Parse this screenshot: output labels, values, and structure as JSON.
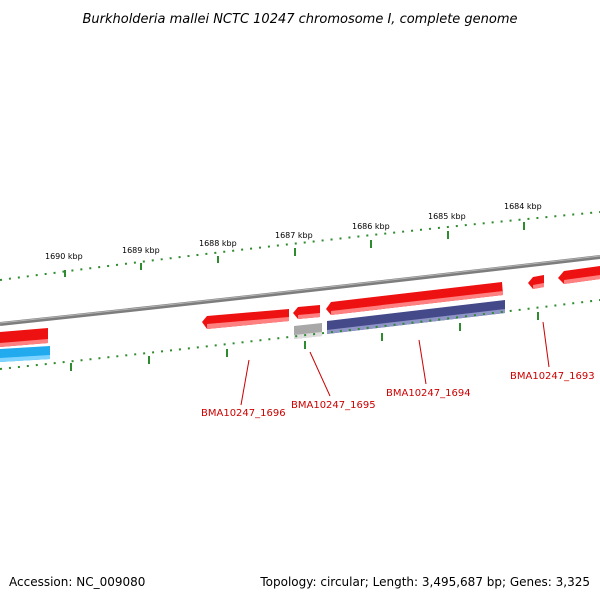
{
  "title": "Burkholderia mallei NCTC 10247 chromosome I, complete genome",
  "footer": {
    "accession": "Accession: NC_009080",
    "topology": "Topology: circular; Length: 3,495,687 bp; Genes: 3,325"
  },
  "scale_labels": [
    "1690 kbp",
    "1689 kbp",
    "1688 kbp",
    "1687 kbp",
    "1686 kbp",
    "1685 kbp",
    "1684 kbp"
  ],
  "gene_labels": [
    "BMA10247_1696",
    "BMA10247_1695",
    "BMA10247_1694",
    "BMA10247_1693"
  ],
  "colors": {
    "forward_cds": "#ee1111",
    "forward_cds_light": "#ff7777",
    "reverse_blue": "#44498a",
    "reverse_blue_light": "#8a8fc0",
    "gray_feature": "#aaaaaa",
    "cyan_feature": "#22aaee",
    "backbone": "#888888",
    "scale_ticks": "#2e8b2e",
    "label_red": "#cc0000"
  }
}
